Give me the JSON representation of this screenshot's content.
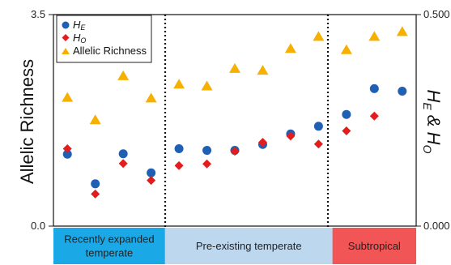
{
  "chart_data": {
    "type": "scatter",
    "left_axis": {
      "label": "Allelic Richness",
      "range": [
        0.0,
        3.5
      ],
      "ticks": [
        "0.0",
        "3.5"
      ]
    },
    "right_axis": {
      "label_main": "H",
      "label_sub1": "E",
      "label_amp": " & H",
      "label_sub2": "O",
      "range": [
        0.0,
        0.5
      ],
      "ticks": [
        "0.000",
        "0.500"
      ]
    },
    "legend": {
      "position": "top-left",
      "items": [
        {
          "name": "H",
          "sub": "E",
          "marker": "circle",
          "color": "#1f5fb4"
        },
        {
          "name": "H",
          "sub": "O",
          "marker": "diamond",
          "color": "#e31d1d"
        },
        {
          "name": "Allelic Richness",
          "sub": "",
          "marker": "triangle",
          "color": "#f5b000"
        }
      ]
    },
    "x": [
      1,
      2,
      3,
      4,
      5,
      6,
      7,
      8,
      9,
      10,
      11,
      12,
      13,
      14,
      15
    ],
    "series": [
      {
        "key": "he",
        "axis": "right",
        "marker": "circle",
        "color": "#1f5fb4",
        "values": [
          0.17,
          0.1,
          0.171,
          0.126,
          0.183,
          0.179,
          0.179,
          0.193,
          0.218,
          0.236,
          0.264,
          0.325,
          0.319
        ]
      },
      {
        "key": "ho",
        "axis": "right",
        "marker": "diamond",
        "color": "#e31d1d",
        "values": [
          0.183,
          0.076,
          0.148,
          0.108,
          0.143,
          0.147,
          0.177,
          0.198,
          0.213,
          0.194,
          0.225,
          0.26
        ]
      },
      {
        "key": "ar",
        "axis": "left",
        "marker": "triangle",
        "color": "#f5b000",
        "values": [
          2.13,
          1.76,
          2.49,
          2.12,
          2.35,
          2.32,
          2.61,
          2.58,
          2.94,
          3.14,
          2.92,
          3.14,
          3.22
        ]
      }
    ],
    "points_x": {
      "he": [
        1.0,
        2.0,
        3.0,
        4.0,
        5.0,
        6.0,
        7.0,
        8.0,
        9.0,
        10.0,
        11.0,
        12.0,
        13.0
      ],
      "ho": [
        1.0,
        2.0,
        3.0,
        4.0,
        5.0,
        6.0,
        7.0,
        8.0,
        9.0,
        10.0,
        11.0,
        12.0
      ],
      "ar": [
        1.0,
        2.0,
        3.0,
        4.0,
        5.0,
        6.0,
        7.0,
        8.0,
        9.0,
        10.0,
        11.0,
        12.0,
        13.0
      ]
    },
    "regions": [
      {
        "label_lines": [
          "Recently expanded",
          "temperate"
        ],
        "color": "#1aa9e6",
        "from": 0.5,
        "to": 4.5
      },
      {
        "label_lines": [
          "Pre-existing temperate"
        ],
        "color": "#bdd7ee",
        "from": 4.5,
        "to": 10.5
      },
      {
        "label_lines": [
          "Subtropical"
        ],
        "color": "#f25555",
        "from": 10.5,
        "to": 13.5
      }
    ],
    "grid": false
  }
}
